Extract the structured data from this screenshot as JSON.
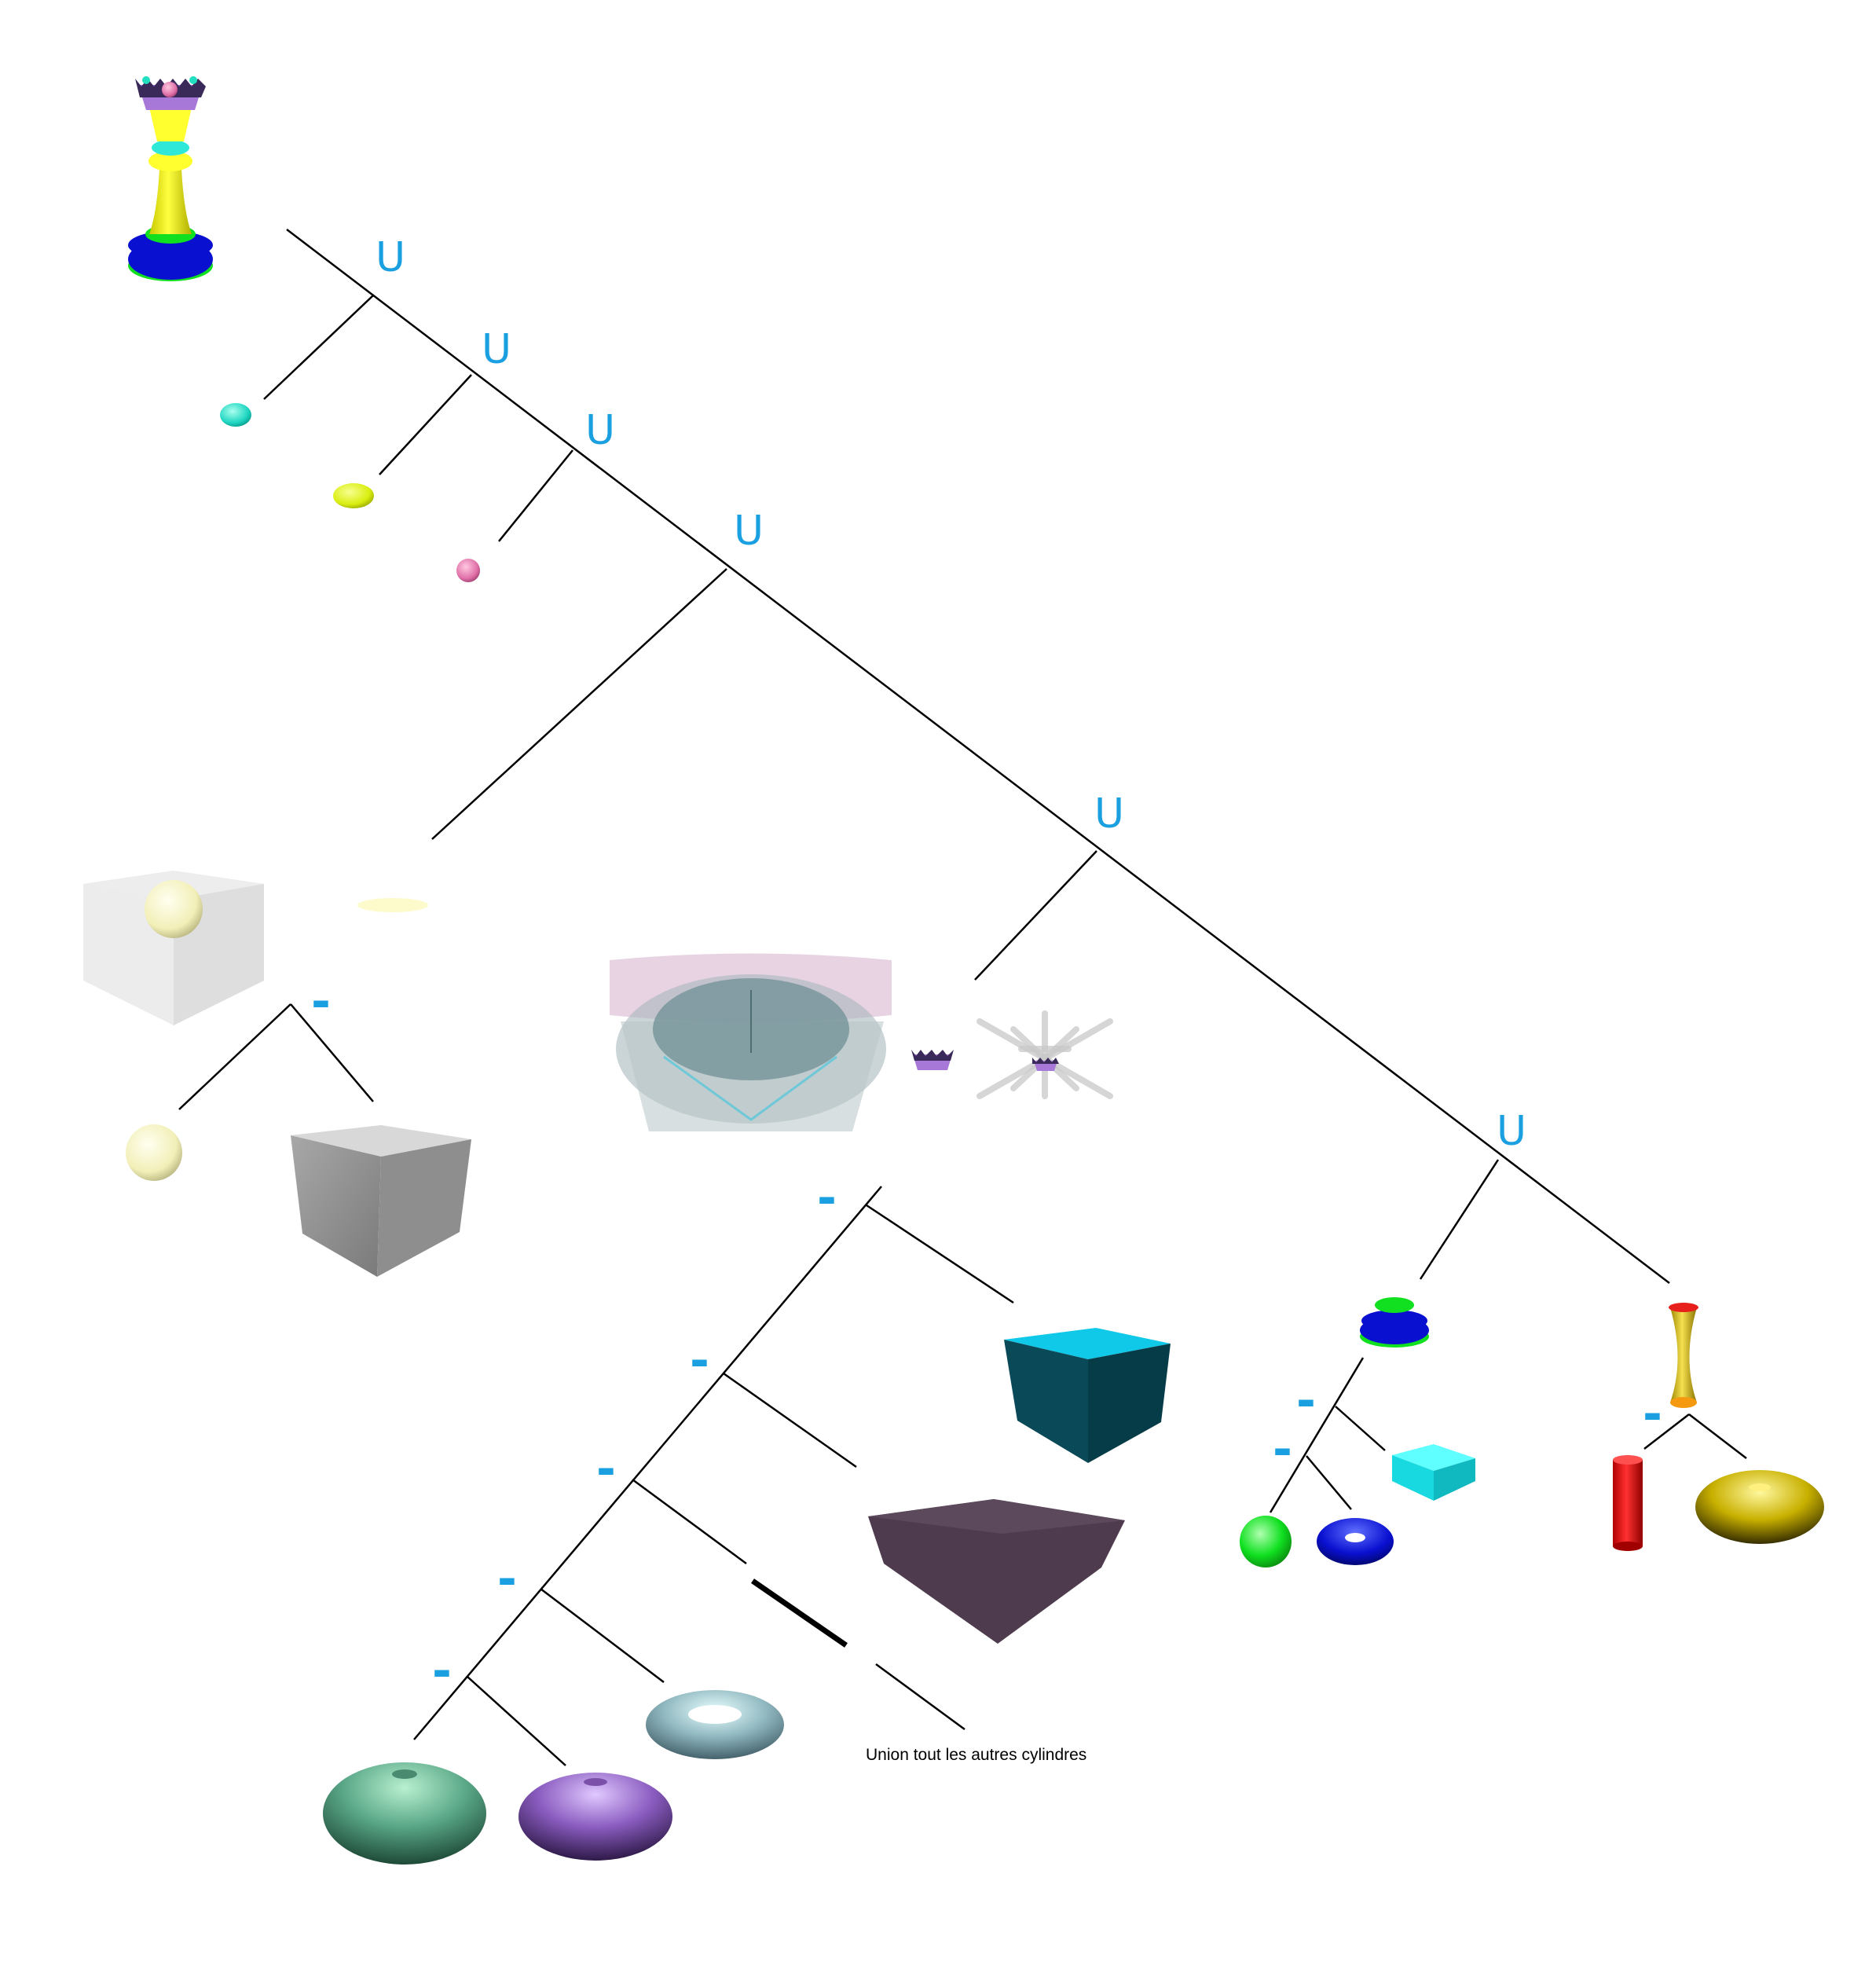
{
  "operators": {
    "union_symbol": "U",
    "difference_symbol": "-"
  },
  "annotation": {
    "cylinders_note": "Union tout les autres cylindres"
  },
  "colors": {
    "operator": "#1aa0e0",
    "edge": "#000000",
    "background": "#ffffff"
  },
  "primitives": [
    "queen-piece",
    "cyan-ellipsoid",
    "yellow-ellipsoid",
    "pink-sphere",
    "translucent-cube-with-sphere",
    "flat-disc",
    "pale-sphere",
    "grey-cube",
    "translucent-crown-composite",
    "crown",
    "crown-with-cylinders",
    "teal-box",
    "dark-slab",
    "thin-cylinder",
    "light-torus",
    "green-torus",
    "purple-torus",
    "base-stack",
    "cyan-block",
    "green-sphere",
    "blue-torus",
    "hourglass",
    "red-cylinder",
    "yellow-torus"
  ]
}
